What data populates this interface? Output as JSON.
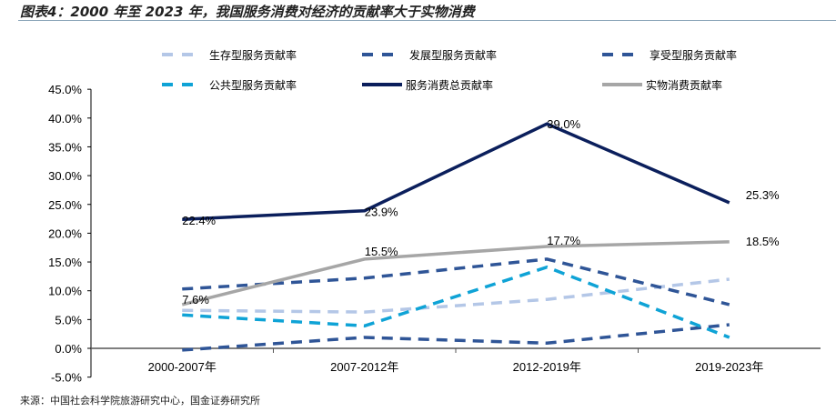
{
  "title": "图表4：2000 年至 2023 年，我国服务消费对经济的贡献率大于实物消费",
  "source": "来源：中国社会科学院旅游研究中心，国金证券研究所",
  "chart_data": {
    "type": "line",
    "title": "图表4：2000 年至 2023 年，我国服务消费对经济的贡献率大于实物消费",
    "categories": [
      "2000-2007年",
      "2007-2012年",
      "2012-2019年",
      "2019-2023年"
    ],
    "ylim": [
      -5,
      45
    ],
    "yticks": [
      "-5.0%",
      "0.0%",
      "5.0%",
      "10.0%",
      "15.0%",
      "20.0%",
      "25.0%",
      "30.0%",
      "35.0%",
      "40.0%",
      "45.0%"
    ],
    "legend_position": "top",
    "series": [
      {
        "name": "生存型服务贡献率",
        "values": [
          6.6,
          6.3,
          8.5,
          12.0
        ],
        "color": "#b4c7e7",
        "dash": true,
        "labels": false
      },
      {
        "name": "发展型服务贡献率",
        "values": [
          10.3,
          12.2,
          15.5,
          7.6
        ],
        "color": "#2f5597",
        "dash": true,
        "labels": false
      },
      {
        "name": "享受型服务贡献率",
        "values": [
          -0.3,
          1.9,
          0.9,
          4.1
        ],
        "color": "#2f5597",
        "dash": true,
        "labels": false
      },
      {
        "name": "公共型服务贡献率",
        "values": [
          5.8,
          3.9,
          14.1,
          1.9
        ],
        "color": "#0fa3d6",
        "dash": true,
        "labels": false
      },
      {
        "name": "服务消费总贡献率",
        "values": [
          22.4,
          23.9,
          39.0,
          25.3
        ],
        "color": "#0b1f5c",
        "dash": false,
        "labels": [
          "22.4%",
          "23.9%",
          "39.0%",
          "25.3%"
        ]
      },
      {
        "name": "实物消费贡献率",
        "values": [
          7.6,
          15.5,
          17.7,
          18.5
        ],
        "color": "#a6a6a6",
        "dash": false,
        "labels": [
          "7.6%",
          "15.5%",
          "17.7%",
          "18.5%"
        ]
      }
    ]
  }
}
